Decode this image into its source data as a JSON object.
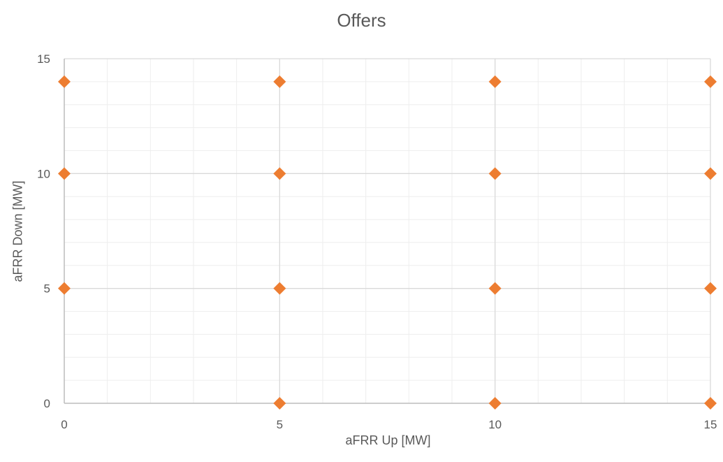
{
  "chart_data": {
    "type": "scatter",
    "title": "Offers",
    "xlabel": "aFRR Up [MW]",
    "ylabel": "aFRR Down [MW]",
    "xlim": [
      0,
      15
    ],
    "ylim": [
      0,
      15
    ],
    "x_ticks": [
      "0",
      "5",
      "10",
      "15"
    ],
    "y_ticks": [
      "0",
      "5",
      "10",
      "15"
    ],
    "x_minor_step": 1,
    "y_minor_step": 1,
    "grid": true,
    "marker": "diamond",
    "series": [
      {
        "color": "#ED7D31",
        "points": [
          {
            "x": 0,
            "y": 14
          },
          {
            "x": 5,
            "y": 14
          },
          {
            "x": 10,
            "y": 14
          },
          {
            "x": 15,
            "y": 14
          },
          {
            "x": 0,
            "y": 10
          },
          {
            "x": 5,
            "y": 10
          },
          {
            "x": 10,
            "y": 10
          },
          {
            "x": 15,
            "y": 10
          },
          {
            "x": 0,
            "y": 5
          },
          {
            "x": 5,
            "y": 5
          },
          {
            "x": 10,
            "y": 5
          },
          {
            "x": 15,
            "y": 5
          },
          {
            "x": 5,
            "y": 0
          },
          {
            "x": 10,
            "y": 0
          },
          {
            "x": 15,
            "y": 0
          }
        ]
      }
    ]
  }
}
